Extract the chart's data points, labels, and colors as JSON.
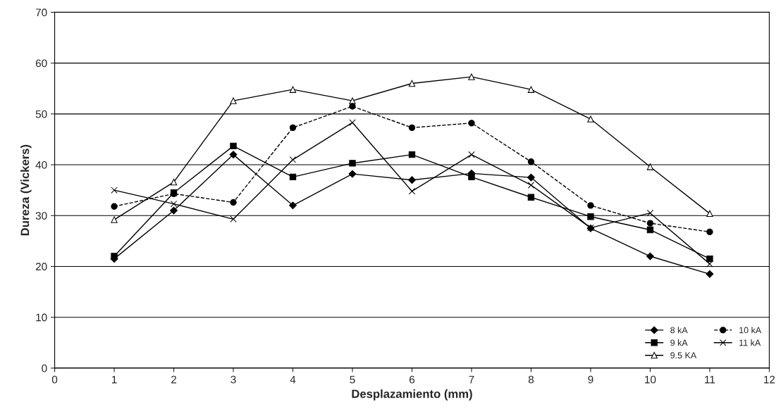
{
  "chart_data": {
    "type": "line",
    "xlabel": "Desplazamiento (mm)",
    "ylabel": "Dureza (Vickers)",
    "x": [
      1,
      2,
      3,
      4,
      5,
      6,
      7,
      8,
      9,
      10,
      11
    ],
    "xlim": [
      0,
      12
    ],
    "xticks": [
      0,
      1,
      2,
      3,
      4,
      5,
      6,
      7,
      8,
      9,
      10,
      11,
      12
    ],
    "ylim": [
      0,
      70
    ],
    "yticks": [
      0,
      10,
      20,
      30,
      40,
      50,
      60,
      70
    ],
    "grid": "y",
    "legend": "bottom right",
    "series": [
      {
        "name": "8 kA",
        "color": "#000000",
        "marker": "diamond",
        "line_style": "solid",
        "values": [
          21.5,
          31,
          42,
          32,
          38.2,
          37,
          38.3,
          37.5,
          27.5,
          22,
          18.5
        ]
      },
      {
        "name": "9 kA",
        "color": "#000000",
        "marker": "square",
        "line_style": "solid",
        "values": [
          22,
          34.5,
          43.7,
          37.6,
          40.3,
          42,
          37.6,
          33.6,
          29.8,
          27.2,
          21.5
        ]
      },
      {
        "name": "9.5 KA",
        "color": "#000000",
        "marker": "triangle",
        "line_style": "solid",
        "values": [
          29.2,
          36.6,
          52.6,
          54.8,
          52.6,
          56,
          57.3,
          54.8,
          49,
          39.6,
          30.4
        ]
      },
      {
        "name": "10 kA",
        "color": "#000000",
        "marker": "circle",
        "line_style": "dashed",
        "values": [
          31.8,
          34.3,
          32.6,
          47.3,
          51.5,
          47.3,
          48.2,
          40.6,
          32,
          28.5,
          26.8
        ]
      },
      {
        "name": "11 kA",
        "color": "#000000",
        "marker": "cross",
        "line_style": "solid",
        "values": [
          35,
          32.3,
          29.3,
          41,
          48.3,
          34.8,
          42,
          36,
          27.6,
          30.5,
          20.5
        ]
      }
    ]
  }
}
